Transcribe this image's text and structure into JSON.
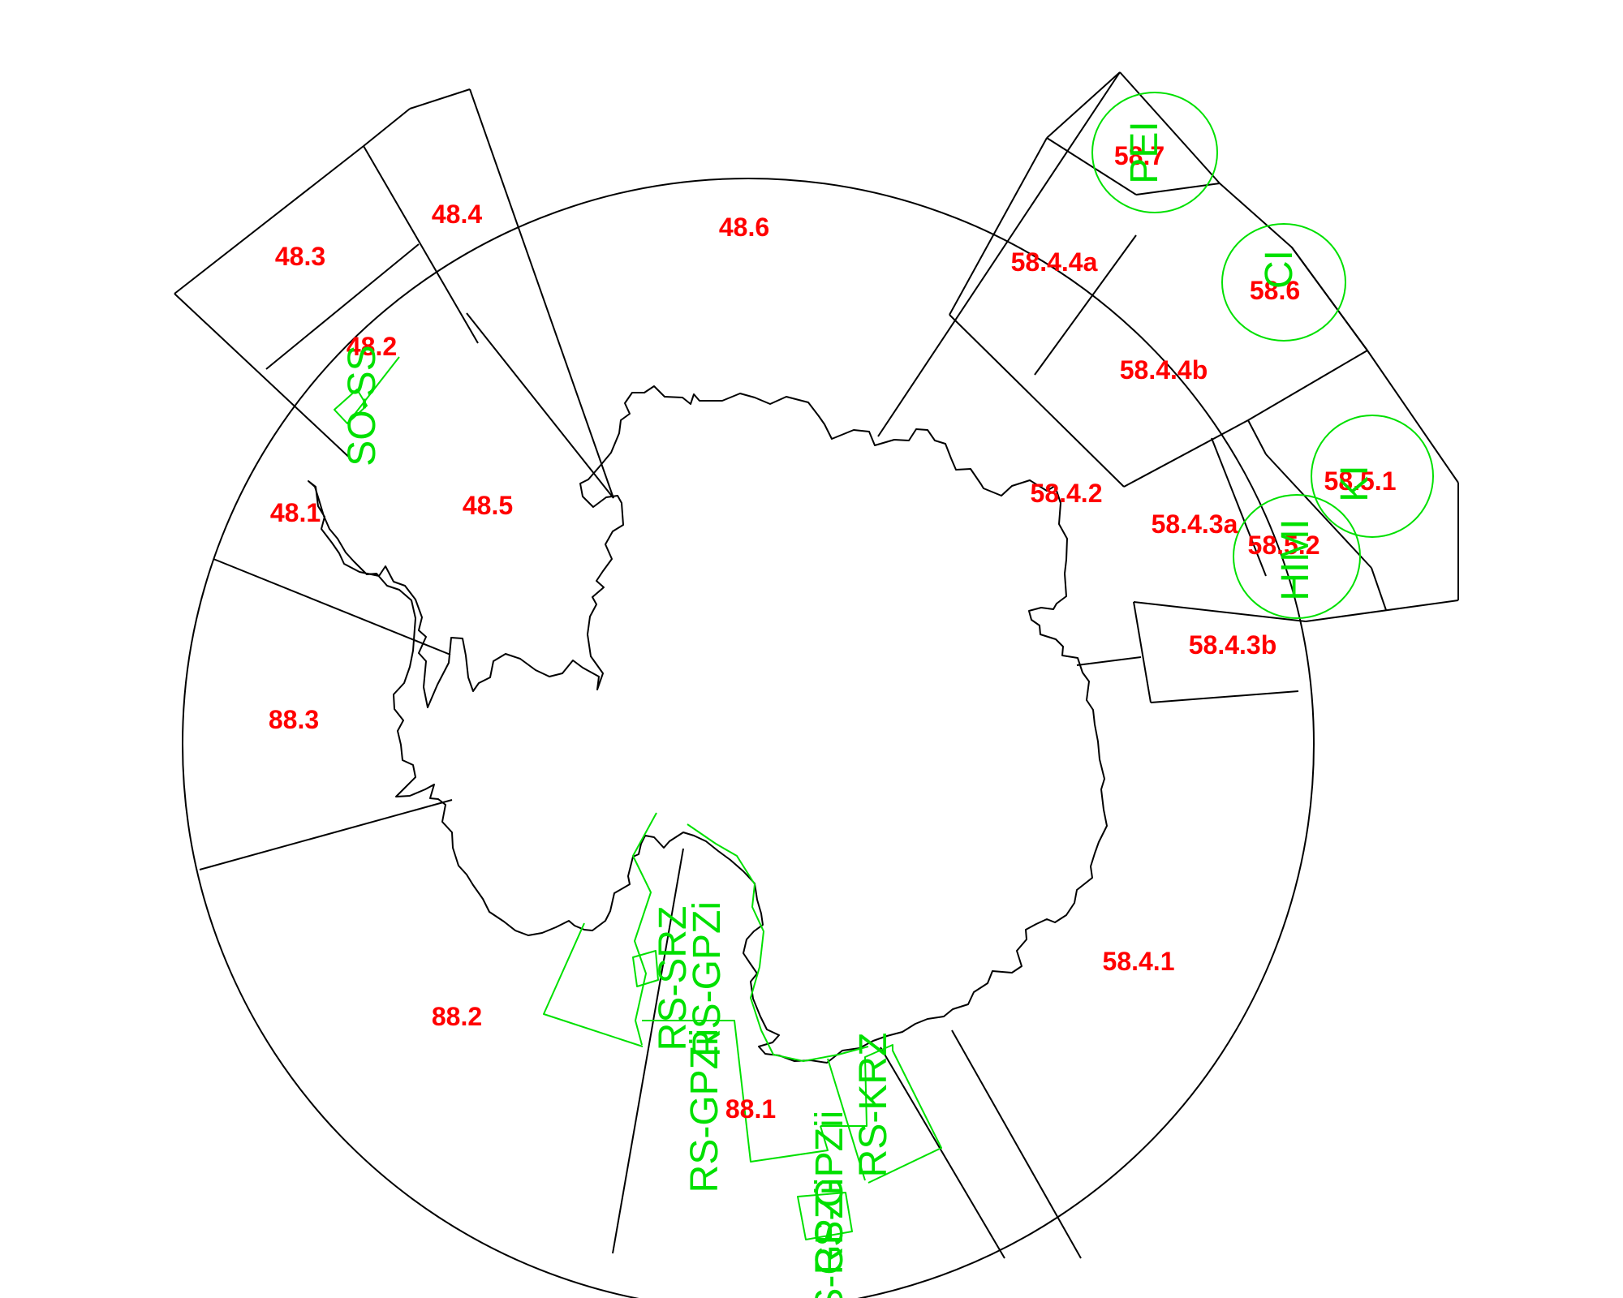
{
  "map": {
    "colors": {
      "boundaries": "#000000",
      "area_labels": "#ff0000",
      "management_regions": "#00e000"
    },
    "statistical_areas": [
      "48.3",
      "48.4",
      "48.6",
      "58.7",
      "58.4.4a",
      "58.6",
      "48.2",
      "58.4.4b",
      "48.5",
      "58.4.2",
      "58.5.1",
      "48.1",
      "58.4.3a",
      "58.5.2",
      "58.4.3b",
      "88.3",
      "88.2",
      "58.4.1",
      "88.1"
    ],
    "management_regions": [
      "SO-SS",
      "PEI",
      "CI",
      "KI",
      "HIMI",
      "RS-SRZ",
      "RS-GPZi",
      "RS-GPZii",
      "RS-KRZ",
      "RS-GPZii",
      "RS-GPZii"
    ]
  }
}
